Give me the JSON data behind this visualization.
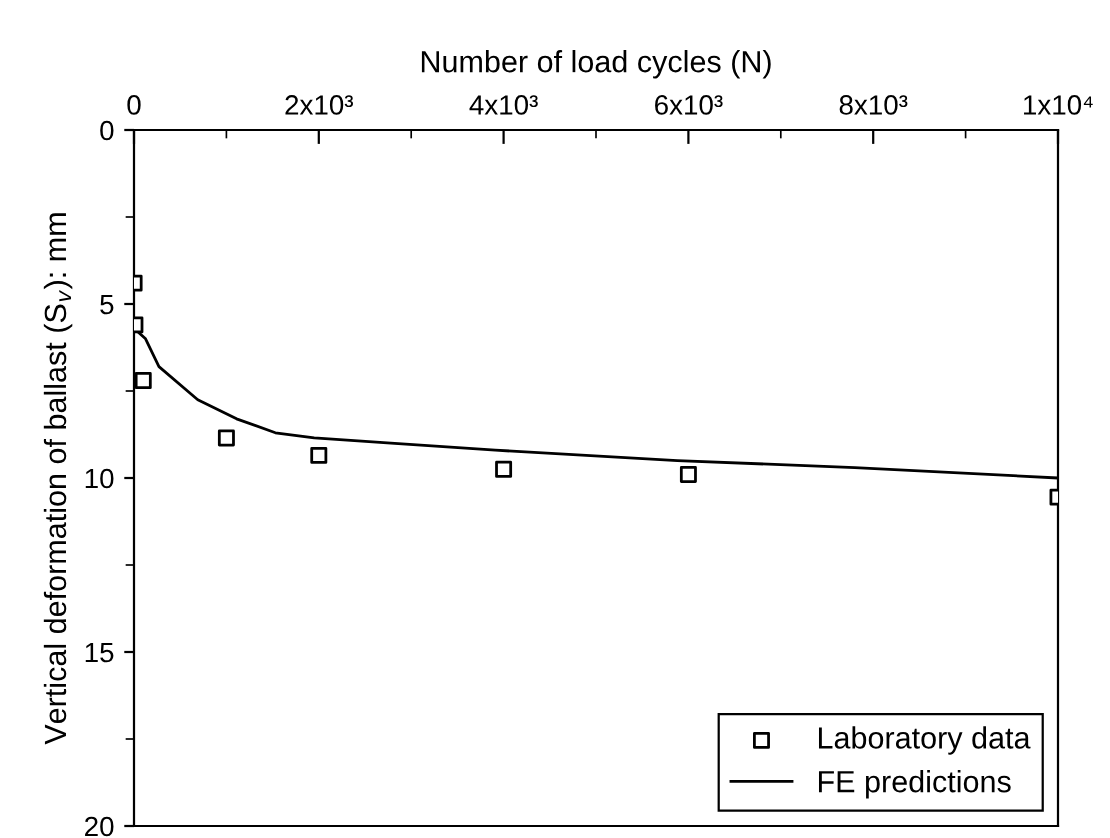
{
  "chart_data": {
    "type": "scatter",
    "xlabel": "Number of load cycles (N)",
    "ylabel": "Vertical deformation of ballast (S$_{v}$): mm",
    "xlim": [
      0,
      10000
    ],
    "xticks": [
      0,
      {
        "value": 2000,
        "label": "2x10³"
      },
      {
        "value": 4000,
        "label": "4x10³"
      },
      {
        "value": 6000,
        "label": "6x10³"
      },
      {
        "value": 8000,
        "label": "8x10³"
      },
      {
        "value": 10000,
        "label": "1x10⁴"
      }
    ],
    "ylim": [
      20,
      0
    ],
    "yticks": [
      0,
      5,
      10,
      15,
      20
    ],
    "series": [
      {
        "name": "Laboratory data",
        "marker": "square",
        "color": "#000000",
        "x": [
          1,
          10,
          100,
          1000,
          2000,
          4000,
          6000,
          10000
        ],
        "values": [
          4.4,
          5.6,
          7.2,
          8.85,
          9.35,
          9.75,
          9.9,
          10.55
        ]
      },
      {
        "name": "FE predictions",
        "type": "line",
        "marker": "none",
        "color": "#000000",
        "x": [
          0,
          125,
          270,
          690,
          1110,
          1530,
          1950,
          2780,
          3910,
          5880,
          7800,
          10000
        ],
        "values": [
          5.7,
          6.0,
          6.8,
          7.75,
          8.3,
          8.7,
          8.85,
          9.0,
          9.2,
          9.5,
          9.7,
          10.0
        ]
      }
    ],
    "legend": "bottom right",
    "grid": false
  }
}
